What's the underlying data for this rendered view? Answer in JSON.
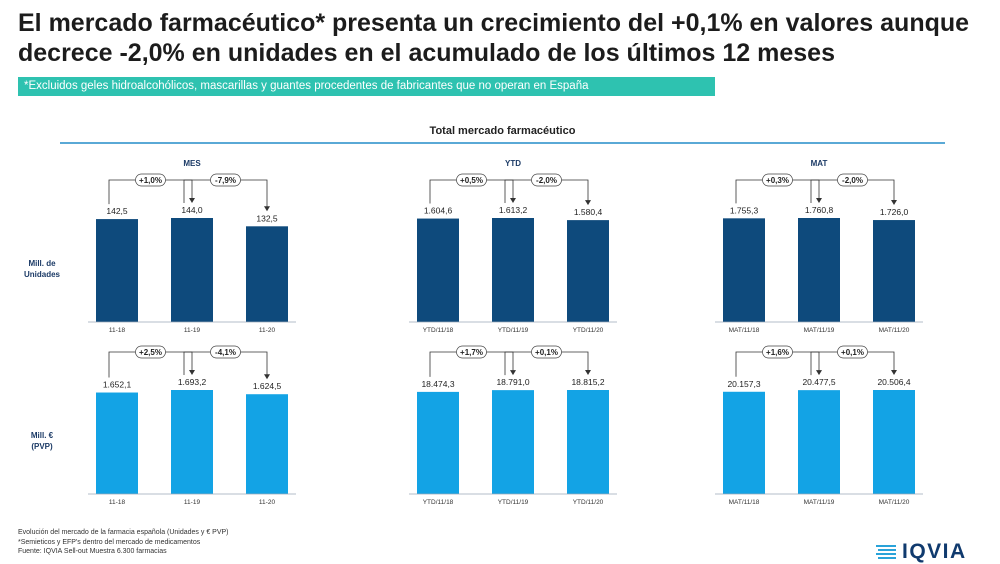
{
  "title": "El mercado farmacéutico* presenta un crecimiento del +0,1% en valores aunque decrece -2,0% en unidades en el acumulado de los últimos 12 meses",
  "note": "*Excluidos geles hidroalcohólicos, mascarillas y guantes procedentes de fabricantes que no operan en España",
  "panel_title": "Total mercado farmacéutico",
  "row_labels": {
    "units": "Mill. de\nUnidades",
    "values": "Mill. €\n(PVP)"
  },
  "colors": {
    "units_bar": "#0e4a7c",
    "values_bar": "#13a3e5",
    "note_bg": "#2ec2b0",
    "rule": "#5aa9d6"
  },
  "footer": [
    "Evolución del mercado de la farmacia española (Unidades y € PVP)",
    "*Semieticos y EFP's dentro del mercado de medicamentos",
    "Fuente: IQVIA Sell-out Muestra 6.300 farmacias"
  ],
  "logo_text": "IQVIA",
  "chart_data": [
    {
      "type": "bar",
      "title": "MES",
      "row": "Mill. de Unidades",
      "categories": [
        "11-18",
        "11-19",
        "11-20"
      ],
      "values": [
        142.5,
        144.0,
        132.5
      ],
      "labels": [
        "142,5",
        "144,0",
        "132,5"
      ],
      "changes": [
        "+1,0%",
        "-7,9%"
      ]
    },
    {
      "type": "bar",
      "title": "YTD",
      "row": "Mill. de Unidades",
      "categories": [
        "YTD/11/18",
        "YTD/11/19",
        "YTD/11/20"
      ],
      "values": [
        1604.6,
        1613.2,
        1580.4
      ],
      "labels": [
        "1.604,6",
        "1.613,2",
        "1.580,4"
      ],
      "changes": [
        "+0,5%",
        "-2,0%"
      ]
    },
    {
      "type": "bar",
      "title": "MAT",
      "row": "Mill. de Unidades",
      "categories": [
        "MAT/11/18",
        "MAT/11/19",
        "MAT/11/20"
      ],
      "values": [
        1755.3,
        1760.8,
        1726.0
      ],
      "labels": [
        "1.755,3",
        "1.760,8",
        "1.726,0"
      ],
      "changes": [
        "+0,3%",
        "-2,0%"
      ]
    },
    {
      "type": "bar",
      "title": "",
      "row": "Mill. € (PVP)",
      "categories": [
        "11-18",
        "11-19",
        "11-20"
      ],
      "values": [
        1652.1,
        1693.2,
        1624.5
      ],
      "labels": [
        "1.652,1",
        "1.693,2",
        "1.624,5"
      ],
      "changes": [
        "+2,5%",
        "-4,1%"
      ]
    },
    {
      "type": "bar",
      "title": "",
      "row": "Mill. € (PVP)",
      "categories": [
        "YTD/11/18",
        "YTD/11/19",
        "YTD/11/20"
      ],
      "values": [
        18474.3,
        18791.0,
        18815.2
      ],
      "labels": [
        "18.474,3",
        "18.791,0",
        "18.815,2"
      ],
      "changes": [
        "+1,7%",
        "+0,1%"
      ]
    },
    {
      "type": "bar",
      "title": "",
      "row": "Mill. € (PVP)",
      "categories": [
        "MAT/11/18",
        "MAT/11/19",
        "MAT/11/20"
      ],
      "values": [
        20157.3,
        20477.5,
        20506.4
      ],
      "labels": [
        "20.157,3",
        "20.477,5",
        "20.506,4"
      ],
      "changes": [
        "+1,6%",
        "+0,1%"
      ]
    }
  ]
}
